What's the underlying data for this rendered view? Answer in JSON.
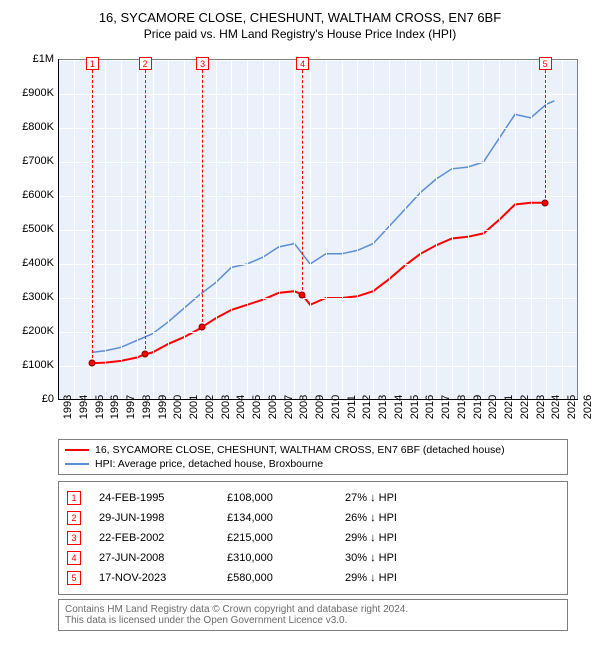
{
  "title": "16, SYCAMORE CLOSE, CHESHUNT, WALTHAM CROSS, EN7 6BF",
  "subtitle": "Price paid vs. HM Land Registry's House Price Index (HPI)",
  "chart": {
    "type": "line",
    "background_color": "#eaf1fb",
    "grid_color": "#ffffff",
    "x_years": [
      1993,
      1994,
      1995,
      1996,
      1997,
      1998,
      1999,
      2000,
      2001,
      2002,
      2003,
      2004,
      2005,
      2006,
      2007,
      2008,
      2009,
      2010,
      2011,
      2012,
      2013,
      2014,
      2015,
      2016,
      2017,
      2018,
      2019,
      2020,
      2021,
      2022,
      2023,
      2024,
      2025,
      2026
    ],
    "ylim": [
      0,
      1000000
    ],
    "ytick_step": 100000,
    "ylabels": [
      "£0",
      "£100K",
      "£200K",
      "£300K",
      "£400K",
      "£500K",
      "£600K",
      "£700K",
      "£800K",
      "£900K",
      "£1M"
    ],
    "series": {
      "property": {
        "color": "#ff0000",
        "line_width": 2,
        "label": "16, SYCAMORE CLOSE, CHESHUNT, WALTHAM CROSS, EN7 6BF (detached house)",
        "points_year": [
          1995.15,
          1996,
          1997,
          1998,
          1998.5,
          1999,
          2000,
          2001,
          2002,
          2002.15,
          2003,
          2004,
          2005,
          2006,
          2007,
          2008,
          2008.49,
          2009,
          2010,
          2011,
          2012,
          2013,
          2014,
          2015,
          2016,
          2017,
          2018,
          2019,
          2020,
          2021,
          2022,
          2023,
          2023.88
        ],
        "points_val": [
          108000,
          110000,
          115000,
          125000,
          134000,
          140000,
          165000,
          185000,
          210000,
          215000,
          240000,
          265000,
          280000,
          295000,
          315000,
          320000,
          310000,
          280000,
          300000,
          300000,
          305000,
          320000,
          355000,
          395000,
          430000,
          455000,
          475000,
          480000,
          490000,
          530000,
          575000,
          580000,
          580000
        ]
      },
      "hpi": {
        "color": "#5b8dd6",
        "line_width": 1.5,
        "label": "HPI: Average price, detached house, Broxbourne",
        "points_year": [
          1995.15,
          1996,
          1997,
          1998,
          1999,
          2000,
          2001,
          2002,
          2003,
          2004,
          2005,
          2006,
          2007,
          2008,
          2009,
          2010,
          2011,
          2012,
          2013,
          2014,
          2015,
          2016,
          2017,
          2018,
          2019,
          2020,
          2021,
          2022,
          2023,
          2024,
          2024.5
        ],
        "points_val": [
          140000,
          145000,
          155000,
          175000,
          195000,
          230000,
          270000,
          310000,
          345000,
          390000,
          400000,
          420000,
          450000,
          460000,
          400000,
          430000,
          430000,
          440000,
          460000,
          510000,
          560000,
          610000,
          650000,
          680000,
          685000,
          700000,
          770000,
          840000,
          830000,
          870000,
          880000
        ]
      }
    },
    "sale_markers": [
      {
        "n": "1",
        "year": 1995.15,
        "val": 108000
      },
      {
        "n": "2",
        "year": 1998.5,
        "val": 134000
      },
      {
        "n": "3",
        "year": 2002.15,
        "val": 215000
      },
      {
        "n": "4",
        "year": 2008.49,
        "val": 310000
      },
      {
        "n": "5",
        "year": 2023.88,
        "val": 580000
      }
    ]
  },
  "sales": [
    {
      "n": "1",
      "date": "24-FEB-1995",
      "price": "£108,000",
      "chg": "27% ↓ HPI"
    },
    {
      "n": "2",
      "date": "29-JUN-1998",
      "price": "£134,000",
      "chg": "26% ↓ HPI"
    },
    {
      "n": "3",
      "date": "22-FEB-2002",
      "price": "£215,000",
      "chg": "29% ↓ HPI"
    },
    {
      "n": "4",
      "date": "27-JUN-2008",
      "price": "£310,000",
      "chg": "30% ↓ HPI"
    },
    {
      "n": "5",
      "date": "17-NOV-2023",
      "price": "£580,000",
      "chg": "29% ↓ HPI"
    }
  ],
  "footnote1": "Contains HM Land Registry data © Crown copyright and database right 2024.",
  "footnote2": "This data is licensed under the Open Government Licence v3.0."
}
